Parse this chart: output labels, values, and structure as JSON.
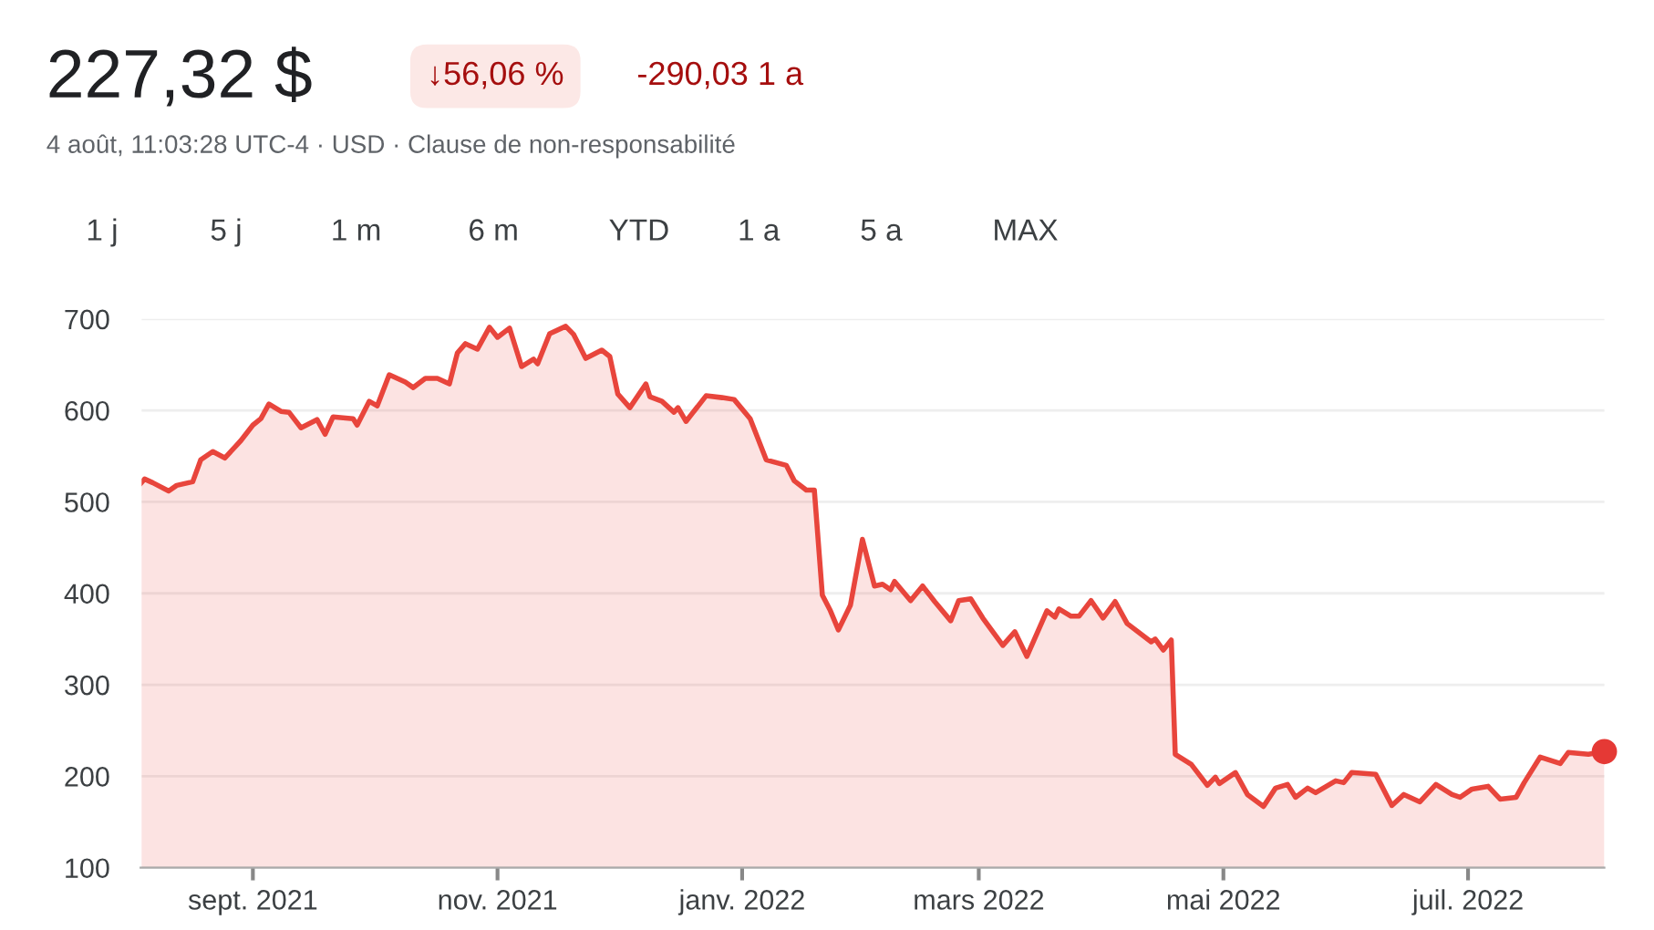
{
  "chart_data": {
    "type": "area",
    "title": "227,32 $",
    "subtitle": "4 août, 11:03:28 UTC-4 · USD · Clause de non-responsabilité",
    "annotations": [
      "↓56,06 %",
      "-290,03 1 a",
      "1 j",
      "5 j",
      "1 m",
      "6 m",
      "YTD",
      "1 a",
      "5 a",
      "MAX"
    ],
    "series": [
      {
        "color": "#e8453c",
        "x": [
          "2021-08-04",
          "2021-08-05",
          "2021-08-07",
          "2021-08-11",
          "2021-08-13",
          "2021-08-17",
          "2021-08-19",
          "2021-08-22",
          "2021-08-25",
          "2021-08-29",
          "2021-09-01",
          "2021-09-03",
          "2021-09-05",
          "2021-09-08",
          "2021-09-10",
          "2021-09-13",
          "2021-09-17",
          "2021-09-19",
          "2021-09-21",
          "2021-09-26",
          "2021-09-27",
          "2021-09-30",
          "2021-10-02",
          "2021-10-05",
          "2021-10-09",
          "2021-10-11",
          "2021-10-14",
          "2021-10-17",
          "2021-10-20",
          "2021-10-22",
          "2021-10-24",
          "2021-10-27",
          "2021-10-30",
          "2021-11-01",
          "2021-11-04",
          "2021-11-07",
          "2021-11-10",
          "2021-11-11",
          "2021-11-14",
          "2021-11-18",
          "2021-11-20",
          "2021-11-23",
          "2021-11-27",
          "2021-11-29",
          "2021-12-01",
          "2021-12-04",
          "2021-12-08",
          "2021-12-09",
          "2021-12-12",
          "2021-12-15",
          "2021-12-16",
          "2021-12-18",
          "2021-12-23",
          "2021-12-27",
          "2021-12-30",
          "2022-01-03",
          "2022-01-07",
          "2022-01-12",
          "2022-01-14",
          "2022-01-17",
          "2022-01-19",
          "2022-01-21",
          "2022-01-23",
          "2022-01-25",
          "2022-01-28",
          "2022-01-31",
          "2022-02-03",
          "2022-02-05",
          "2022-02-07",
          "2022-02-08",
          "2022-02-12",
          "2022-02-15",
          "2022-02-18",
          "2022-02-22",
          "2022-02-24",
          "2022-02-27",
          "2022-03-02",
          "2022-03-07",
          "2022-03-10",
          "2022-03-13",
          "2022-03-18",
          "2022-03-20",
          "2022-03-21",
          "2022-03-24",
          "2022-03-26",
          "2022-03-29",
          "2022-04-01",
          "2022-04-04",
          "2022-04-07",
          "2022-04-13",
          "2022-04-14",
          "2022-04-16",
          "2022-04-18",
          "2022-04-19",
          "2022-04-23",
          "2022-04-27",
          "2022-04-29",
          "2022-04-30",
          "2022-05-04",
          "2022-05-07",
          "2022-05-11",
          "2022-05-14",
          "2022-05-17",
          "2022-05-19",
          "2022-05-22",
          "2022-05-24",
          "2022-05-29",
          "2022-05-31",
          "2022-06-02",
          "2022-06-08",
          "2022-06-12",
          "2022-06-15",
          "2022-06-19",
          "2022-06-23",
          "2022-06-27",
          "2022-06-29",
          "2022-07-02",
          "2022-07-06",
          "2022-07-09",
          "2022-07-13",
          "2022-07-15",
          "2022-07-19",
          "2022-07-24",
          "2022-07-26",
          "2022-07-31",
          "2022-08-04"
        ],
        "values": [
          520,
          525,
          521,
          512,
          518,
          522,
          546,
          555,
          548,
          567,
          584,
          591,
          607,
          599,
          598,
          581,
          590,
          574,
          593,
          591,
          584,
          610,
          605,
          639,
          631,
          625,
          635,
          635,
          629,
          663,
          673,
          667,
          691,
          680,
          690,
          648,
          656,
          651,
          684,
          692,
          683,
          657,
          666,
          659,
          618,
          603,
          629,
          615,
          610,
          598,
          603,
          588,
          616,
          614,
          612,
          591,
          546,
          540,
          523,
          513,
          513,
          398,
          381,
          360,
          387,
          459,
          408,
          410,
          404,
          413,
          392,
          408,
          391,
          370,
          392,
          394,
          373,
          343,
          358,
          331,
          381,
          374,
          383,
          375,
          375,
          392,
          373,
          391,
          367,
          347,
          350,
          338,
          349,
          224,
          213,
          190,
          199,
          192,
          204,
          180,
          167,
          187,
          191,
          177,
          187,
          182,
          195,
          193,
          204,
          202,
          168,
          180,
          172,
          191,
          180,
          177,
          186,
          189,
          175,
          177,
          193,
          221,
          214,
          226,
          224,
          227
        ]
      },
      {
        "type": "scatter",
        "color": "#e53935",
        "marker": "circle",
        "x": [
          "2022-08-04"
        ],
        "values": [
          227
        ]
      }
    ],
    "xlim": [
      "2021-08-04",
      "2022-08-04"
    ],
    "xticks": [
      {
        "value": "2021-09-01",
        "label": "sept. 2021"
      },
      {
        "value": "2021-11-01",
        "label": "nov. 2021"
      },
      {
        "value": "2022-01-01",
        "label": "janv. 2022"
      },
      {
        "value": "2022-03-01",
        "label": "mars 2022"
      },
      {
        "value": "2022-05-01",
        "label": "mai 2022"
      },
      {
        "value": "2022-07-01",
        "label": "juil. 2022"
      }
    ],
    "ylim": [
      100,
      700
    ],
    "yticks": [
      100,
      200,
      300,
      400,
      500,
      600,
      700
    ],
    "grid": "y",
    "legend": false
  }
}
